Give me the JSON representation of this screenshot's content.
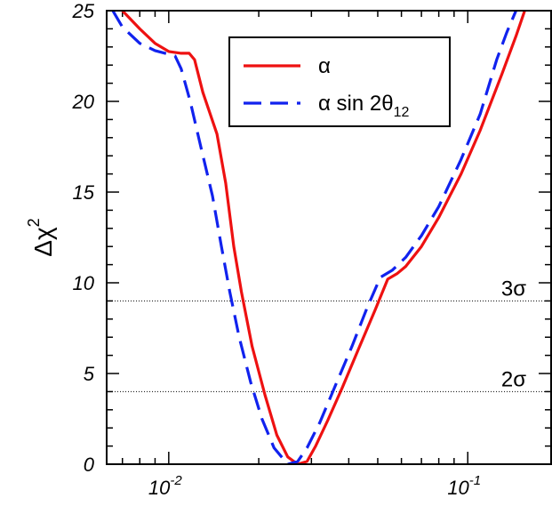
{
  "chart_data": {
    "type": "line",
    "xscale": "log",
    "xlim": [
      0.0062,
      0.19
    ],
    "ylim": [
      0,
      25
    ],
    "xticks": [
      {
        "value": 0.01,
        "base": "10",
        "exp": "-2"
      },
      {
        "value": 0.1,
        "base": "10",
        "exp": "-1"
      }
    ],
    "yticks": [
      {
        "value": 0,
        "label": "0"
      },
      {
        "value": 5,
        "label": "5"
      },
      {
        "value": 10,
        "label": "10"
      },
      {
        "value": 15,
        "label": "15"
      },
      {
        "value": 20,
        "label": "20"
      },
      {
        "value": 25,
        "label": "25"
      }
    ],
    "ylabel": {
      "base": "Δχ",
      "sup": "2"
    },
    "reference_lines": [
      {
        "y": 9,
        "label": "3σ"
      },
      {
        "y": 4,
        "label": "2σ"
      }
    ],
    "legend_position": "top-right",
    "series": [
      {
        "name": "α",
        "color": "#ee1111",
        "style": "solid",
        "points": [
          [
            0.007,
            25.0
          ],
          [
            0.008,
            24.0
          ],
          [
            0.009,
            23.2
          ],
          [
            0.01,
            22.75
          ],
          [
            0.011,
            22.65
          ],
          [
            0.0117,
            22.65
          ],
          [
            0.0122,
            22.3
          ],
          [
            0.013,
            20.5
          ],
          [
            0.0145,
            18.2
          ],
          [
            0.0155,
            15.5
          ],
          [
            0.0165,
            12.0
          ],
          [
            0.0175,
            9.5
          ],
          [
            0.019,
            6.5
          ],
          [
            0.021,
            3.8
          ],
          [
            0.023,
            1.6
          ],
          [
            0.025,
            0.4
          ],
          [
            0.027,
            0.0
          ],
          [
            0.029,
            0.15
          ],
          [
            0.031,
            1.0
          ],
          [
            0.034,
            2.4
          ],
          [
            0.038,
            4.2
          ],
          [
            0.043,
            6.3
          ],
          [
            0.049,
            8.5
          ],
          [
            0.054,
            10.2
          ],
          [
            0.058,
            10.5
          ],
          [
            0.062,
            10.9
          ],
          [
            0.07,
            12.0
          ],
          [
            0.08,
            13.6
          ],
          [
            0.095,
            16.0
          ],
          [
            0.11,
            18.4
          ],
          [
            0.13,
            21.5
          ],
          [
            0.145,
            23.6
          ],
          [
            0.155,
            25.0
          ]
        ]
      },
      {
        "name": "α sin 2θ",
        "name_sub": "12",
        "color": "#1122ee",
        "style": "dashed",
        "points": [
          [
            0.0065,
            25.0
          ],
          [
            0.007,
            24.1
          ],
          [
            0.008,
            23.2
          ],
          [
            0.009,
            22.8
          ],
          [
            0.01,
            22.6
          ],
          [
            0.0105,
            22.5
          ],
          [
            0.011,
            21.8
          ],
          [
            0.0118,
            20.0
          ],
          [
            0.0128,
            17.5
          ],
          [
            0.014,
            14.8
          ],
          [
            0.015,
            12.0
          ],
          [
            0.016,
            9.5
          ],
          [
            0.0172,
            7.0
          ],
          [
            0.0188,
            4.5
          ],
          [
            0.0205,
            2.5
          ],
          [
            0.0225,
            0.9
          ],
          [
            0.025,
            0.0
          ],
          [
            0.027,
            0.15
          ],
          [
            0.029,
            0.9
          ],
          [
            0.032,
            2.3
          ],
          [
            0.036,
            4.3
          ],
          [
            0.041,
            6.5
          ],
          [
            0.046,
            8.6
          ],
          [
            0.051,
            10.3
          ],
          [
            0.056,
            10.7
          ],
          [
            0.062,
            11.4
          ],
          [
            0.07,
            12.6
          ],
          [
            0.08,
            14.2
          ],
          [
            0.095,
            16.8
          ],
          [
            0.11,
            19.3
          ],
          [
            0.125,
            22.3
          ],
          [
            0.135,
            23.8
          ],
          [
            0.145,
            25.0
          ]
        ]
      }
    ]
  }
}
